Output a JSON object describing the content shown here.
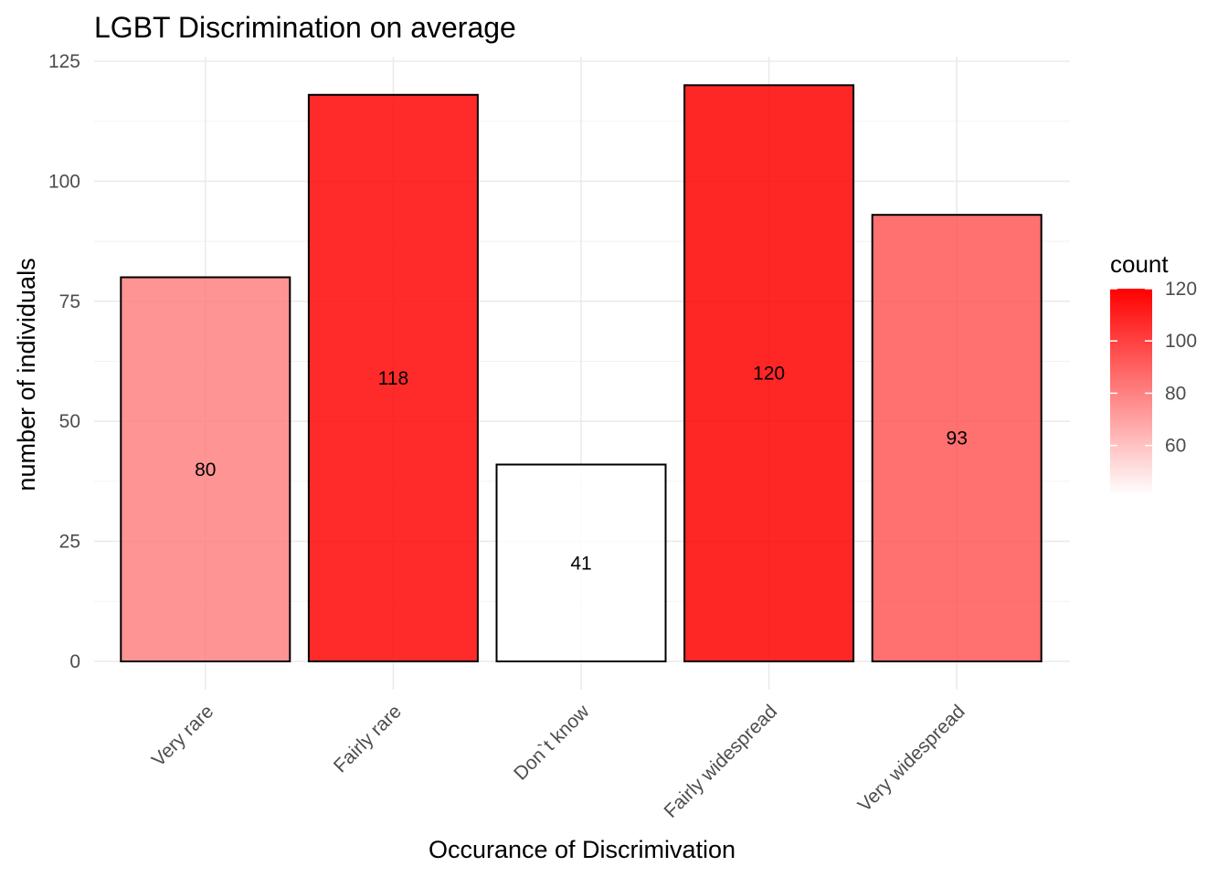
{
  "chart_data": {
    "type": "bar",
    "title": "LGBT Discrimination on average",
    "xlabel": "Occurance of Discrimivation",
    "ylabel": "number of individuals",
    "categories": [
      "Very rare",
      "Fairly rare",
      "Don`t know",
      "Fairly widespread",
      "Very widespread"
    ],
    "values": [
      80,
      118,
      41,
      120,
      93
    ],
    "data_labels": [
      "80",
      "118",
      "41",
      "120",
      "93"
    ],
    "ylim": [
      0,
      125
    ],
    "yticks": [
      0,
      25,
      50,
      75,
      100,
      125
    ],
    "ytick_labels": [
      "0",
      "25",
      "50",
      "75",
      "100",
      "125"
    ],
    "grid": true,
    "legend": {
      "title": "count",
      "position": "right",
      "range": [
        41,
        120
      ],
      "ticks": [
        60,
        80,
        100,
        120
      ],
      "tick_labels": [
        "60",
        "80",
        "100",
        "120"
      ],
      "low_color": "#ffffff",
      "high_color": "#ff0000"
    }
  }
}
